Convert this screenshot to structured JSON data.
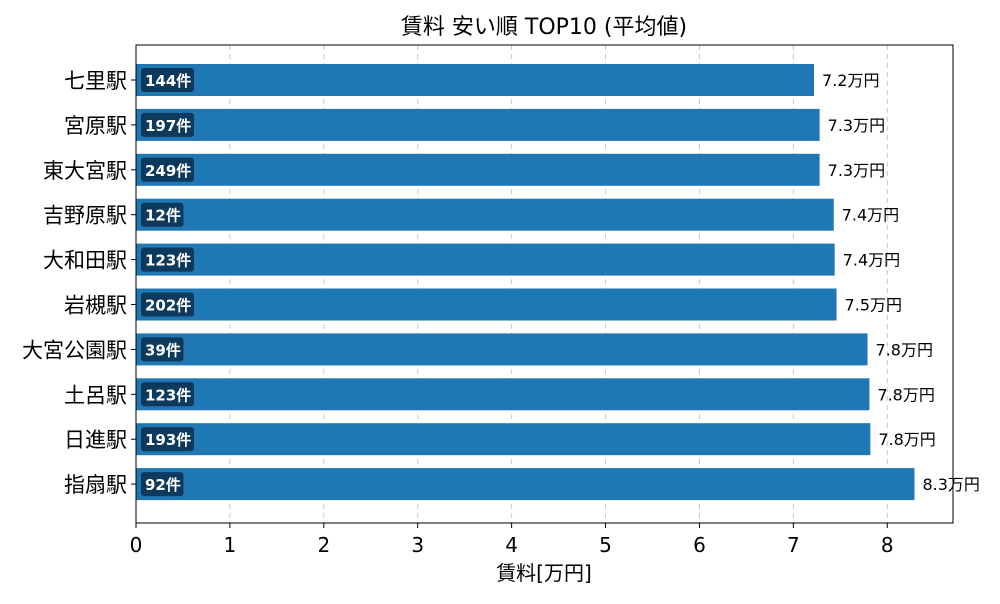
{
  "chart_data": {
    "type": "bar",
    "orientation": "horizontal",
    "title": "賃料 安い順 TOP10 (平均値)",
    "xlabel": "賃料[万円]",
    "ylabel": "",
    "xlim": [
      0,
      8.7
    ],
    "xticks": [
      0,
      1,
      2,
      3,
      4,
      5,
      6,
      7,
      8
    ],
    "grid": "x-dashed",
    "categories": [
      "七里駅",
      "宮原駅",
      "東大宮駅",
      "吉野原駅",
      "大和田駅",
      "岩槻駅",
      "大宮公園駅",
      "土呂駅",
      "日進駅",
      "指扇駅"
    ],
    "values": [
      7.22,
      7.28,
      7.28,
      7.43,
      7.44,
      7.46,
      7.79,
      7.81,
      7.82,
      8.29
    ],
    "value_labels": [
      "7.2万円",
      "7.3万円",
      "7.3万円",
      "7.4万円",
      "7.4万円",
      "7.5万円",
      "7.8万円",
      "7.8万円",
      "7.8万円",
      "8.3万円"
    ],
    "count_labels": [
      "144件",
      "197件",
      "249件",
      "12件",
      "123件",
      "202件",
      "39件",
      "123件",
      "193件",
      "92件"
    ],
    "colors": {
      "bar": "#1f77b4",
      "badge": "#0d3a5c",
      "badge_text": "#ffffff",
      "grid": "#c8c8c8",
      "axis": "#000000"
    }
  }
}
